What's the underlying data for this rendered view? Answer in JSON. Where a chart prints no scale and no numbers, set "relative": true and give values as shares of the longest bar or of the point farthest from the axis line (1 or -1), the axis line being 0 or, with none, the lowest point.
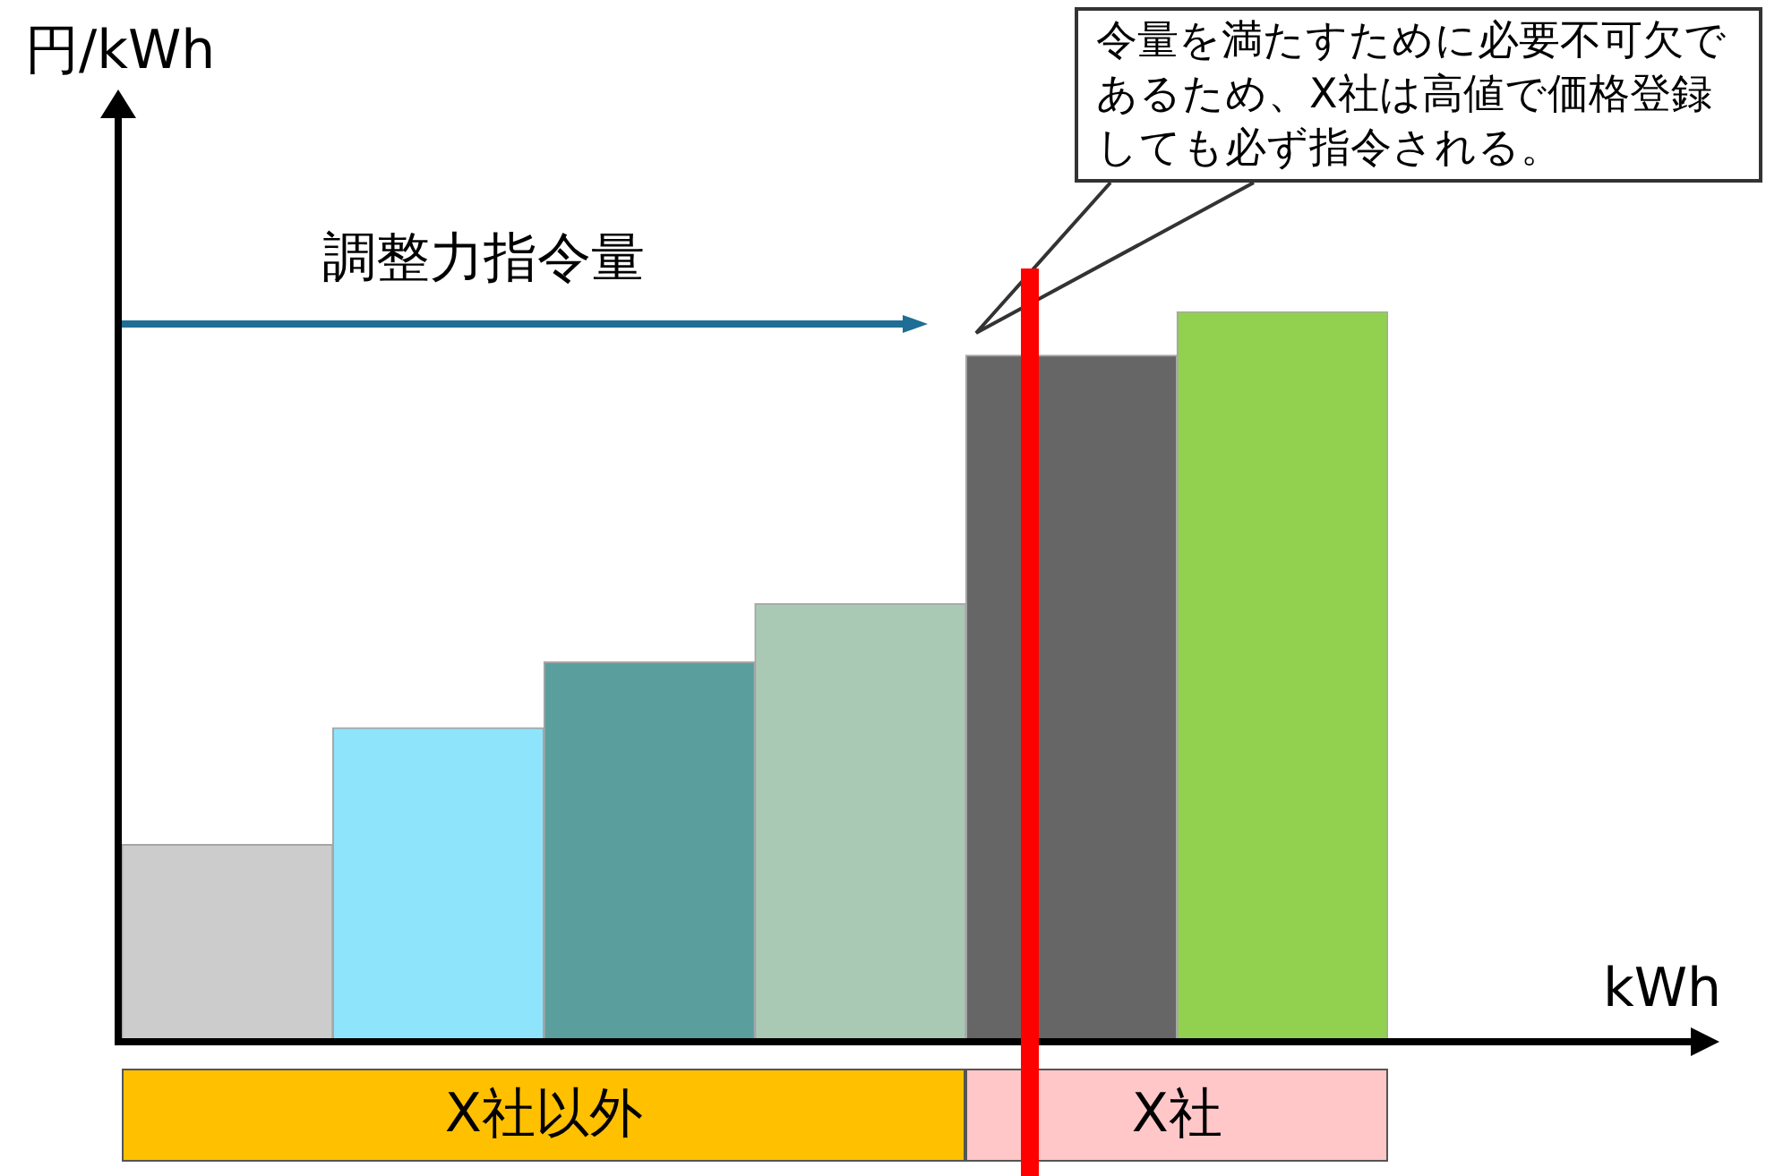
{
  "chart_data": {
    "type": "bar",
    "relative": true,
    "ylabel": "円/kWh",
    "xlabel": "kWh",
    "categories": [
      null,
      null,
      null,
      null,
      null,
      null
    ],
    "values": [
      0.27,
      0.43,
      0.52,
      0.6,
      0.94,
      1
    ],
    "colors": [
      "#cccccc",
      "#8ee5fb",
      "#5a9e9e",
      "#a9c9b4",
      "#666666",
      "#92d050"
    ],
    "legend": false,
    "annotations": [
      "令量を満たすために必要不可欠であるため、X社は高値で価格登録しても必ず指令される。",
      "調整力指令量",
      "X社以外",
      "X社"
    ]
  }
}
